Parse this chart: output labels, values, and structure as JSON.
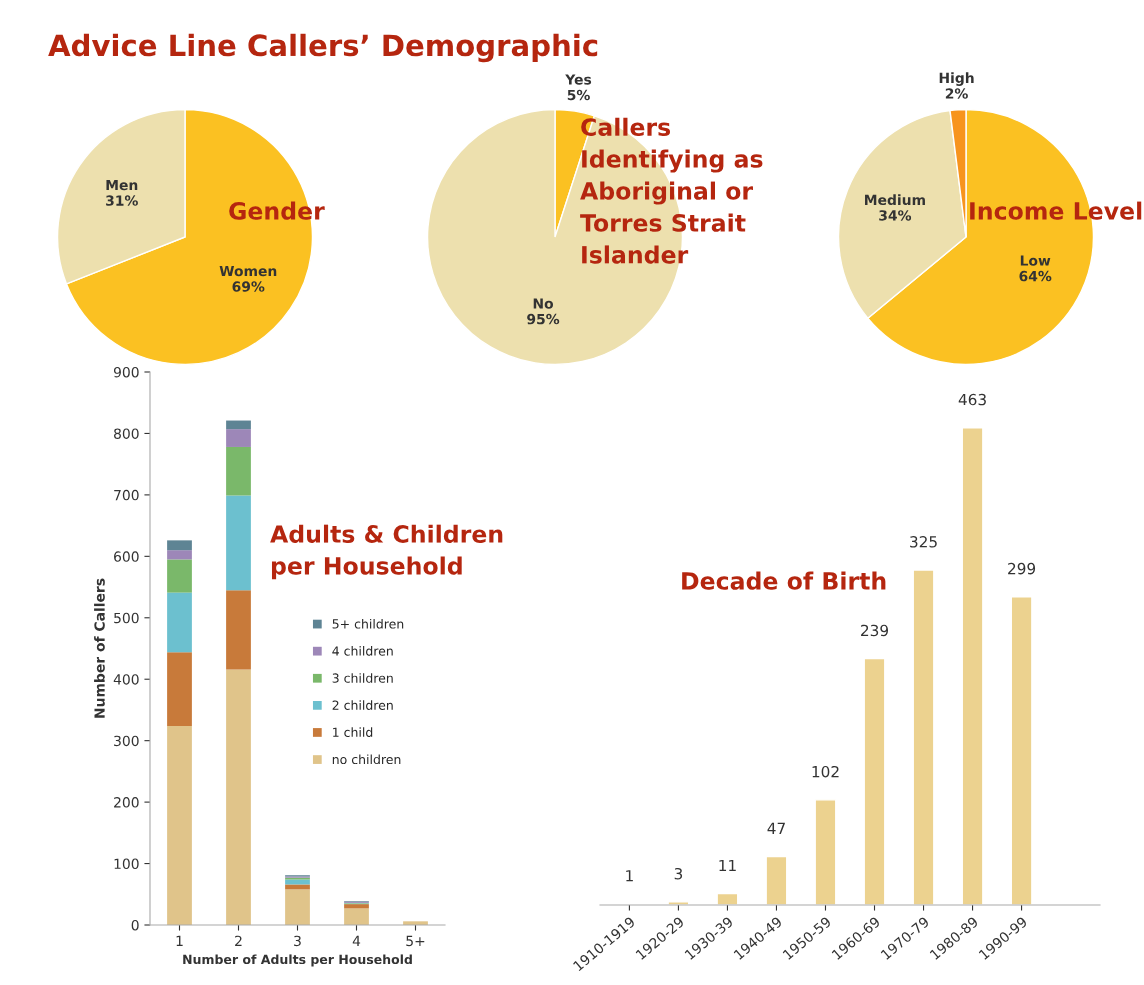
{
  "chart_data": [
    {
      "type": "pie",
      "title": "Gender",
      "annotations": [
        "Advice Line Callers’ Demographic"
      ],
      "categories": [
        "Women",
        "Men"
      ],
      "values": [
        69,
        31
      ],
      "value_labels": [
        "69%",
        "31%"
      ],
      "colors": [
        "#fbc122",
        "#ede0ae"
      ]
    },
    {
      "type": "pie",
      "title": "Callers\nIdentifying as\nAboriginal or\nTorres Strait\nIslander",
      "categories": [
        "Yes",
        "No"
      ],
      "values": [
        5,
        95
      ],
      "value_labels": [
        "5%",
        "95%"
      ],
      "colors": [
        "#fbc122",
        "#ede0ae"
      ]
    },
    {
      "type": "pie",
      "title": "Income Level",
      "categories": [
        "Low",
        "Medium",
        "High"
      ],
      "values": [
        64,
        34,
        2
      ],
      "value_labels": [
        "64%",
        "34%",
        "2%"
      ],
      "colors": [
        "#fbc122",
        "#ede0ae",
        "#f7941d"
      ]
    },
    {
      "type": "bar",
      "stacked": true,
      "title": "Adults & Children\nper Household",
      "xlabel": "Number of Adults per Household",
      "ylabel": "Number of Callers",
      "categories": [
        "1",
        "2",
        "3",
        "4",
        "5+"
      ],
      "ylim": [
        0,
        900
      ],
      "yticks": [
        0,
        100,
        200,
        300,
        400,
        500,
        600,
        700,
        800,
        900
      ],
      "legend": "center right",
      "series": [
        {
          "name": "no children",
          "color": "#e0c48a",
          "values": [
            324,
            416,
            58,
            27,
            6
          ]
        },
        {
          "name": "1 child",
          "color": "#c87a3a",
          "values": [
            120,
            129,
            8,
            7,
            0
          ]
        },
        {
          "name": "2 children",
          "color": "#6cc0cf",
          "values": [
            97,
            154,
            8,
            1,
            0
          ]
        },
        {
          "name": "3 children",
          "color": "#7ab86a",
          "values": [
            54,
            79,
            3,
            1,
            0
          ]
        },
        {
          "name": "4 children",
          "color": "#9d87b8",
          "values": [
            15,
            29,
            2,
            2,
            0
          ]
        },
        {
          "name": "5+ children",
          "color": "#5e8494",
          "values": [
            16,
            14,
            2,
            1,
            0
          ]
        }
      ]
    },
    {
      "type": "bar",
      "title": "Decade of Birth",
      "categories": [
        "1910-1919",
        "1920-29",
        "1930-39",
        "1940-49",
        "1950-59",
        "1960-69",
        "1970-79",
        "1980-89",
        "1990-99"
      ],
      "values": [
        1,
        3,
        11,
        47,
        102,
        239,
        325,
        463,
        299
      ],
      "data_labels": true,
      "color": "#ecd28f"
    }
  ]
}
